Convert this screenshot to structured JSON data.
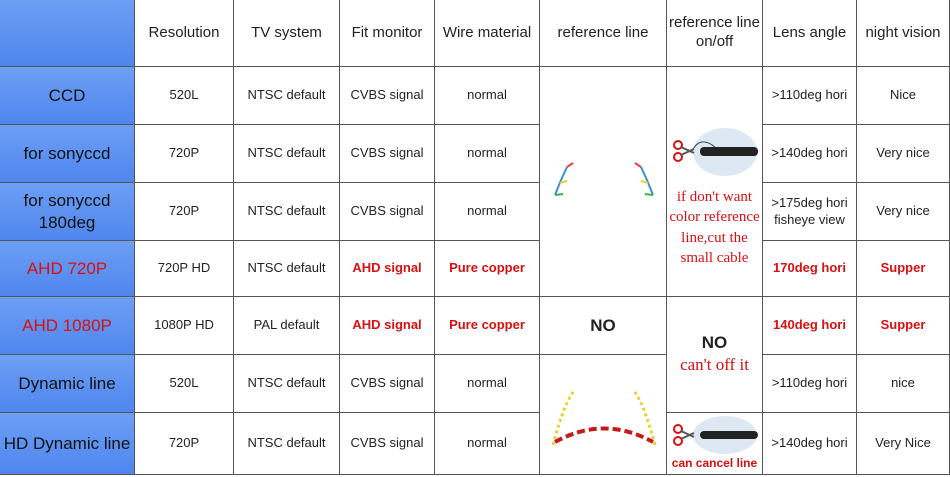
{
  "header": {
    "columns": [
      "Resolution",
      "TV system",
      "Fit monitor",
      "Wire material",
      "reference line",
      "reference line on/off",
      "Lens angle",
      "night vision"
    ]
  },
  "rows": [
    {
      "label": "CCD",
      "resolution": "520L",
      "tv_system": "NTSC default",
      "fit_monitor": "CVBS signal",
      "wire_material": "normal",
      "lens_angle": ">110deg hori",
      "night_vision": "Nice"
    },
    {
      "label": "for sonyccd",
      "resolution": "720P",
      "tv_system": "NTSC default",
      "fit_monitor": "CVBS signal",
      "wire_material": "normal",
      "lens_angle": ">140deg hori",
      "night_vision": "Very nice"
    },
    {
      "label": "for sonyccd 180deg",
      "resolution": "720P",
      "tv_system": "NTSC default",
      "fit_monitor": "CVBS signal",
      "wire_material": "normal",
      "lens_angle": ">175deg hori fisheye view",
      "night_vision": "Very nice"
    },
    {
      "label": "AHD 720P",
      "resolution": "720P HD",
      "tv_system": "NTSC default",
      "fit_monitor": "AHD signal",
      "wire_material": "Pure copper",
      "lens_angle": "170deg hori",
      "night_vision": "Supper",
      "color": "#d81010"
    },
    {
      "label": "AHD 1080P",
      "resolution": "1080P HD",
      "tv_system": "PAL default",
      "fit_monitor": "AHD signal",
      "wire_material": "Pure copper",
      "lens_angle": "140deg hori",
      "night_vision": "Supper",
      "color": "#d81010"
    },
    {
      "label": "Dynamic line",
      "resolution": "520L",
      "tv_system": "NTSC default",
      "fit_monitor": "CVBS signal",
      "wire_material": "normal",
      "lens_angle": ">110deg hori",
      "night_vision": "nice"
    },
    {
      "label": "HD Dynamic line",
      "resolution": "720P",
      "tv_system": "NTSC default",
      "fit_monitor": "CVBS signal",
      "wire_material": "normal",
      "lens_angle": ">140deg hori",
      "night_vision": "Very Nice"
    }
  ],
  "reference_line": {
    "ahd_1080p": "NO"
  },
  "reference_on_off": {
    "note": "if don't want color reference line,cut the small cable",
    "no": "NO",
    "no_note": "can't off it",
    "cancel_note": "can cancel line"
  }
}
